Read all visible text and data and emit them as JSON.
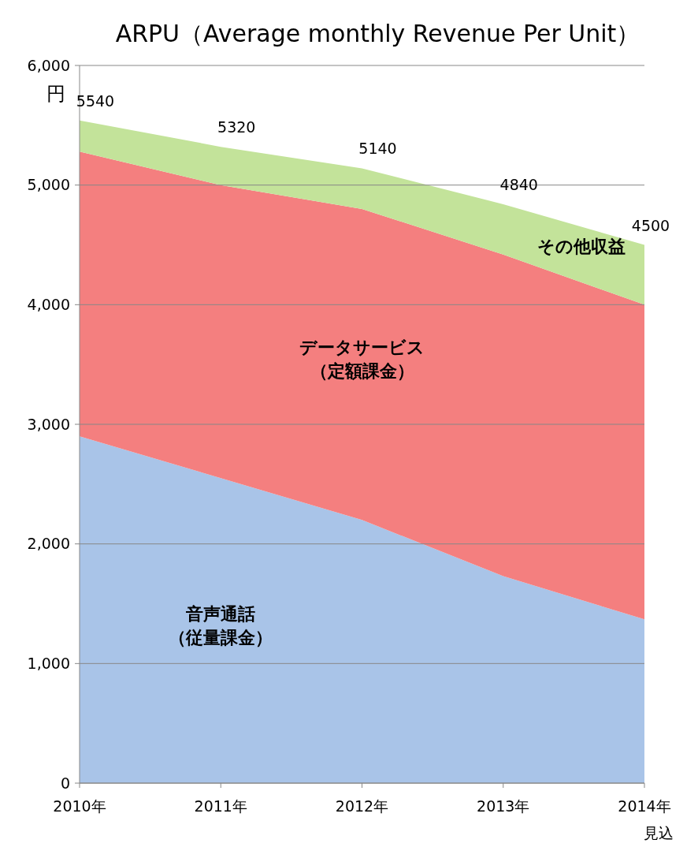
{
  "chart_data": {
    "type": "area",
    "title": "ARPU（Average monthly Revenue Per Unit）",
    "ylabel": "円",
    "categories": [
      "2010年",
      "2011年",
      "2012年",
      "2013年",
      "2014年見込"
    ],
    "stacked": true,
    "ylim": [
      0,
      6000
    ],
    "yticks": [
      {
        "value": 0,
        "label": "0"
      },
      {
        "value": 1000,
        "label": "1,000"
      },
      {
        "value": 2000,
        "label": "2,000"
      },
      {
        "value": 3000,
        "label": "3,000"
      },
      {
        "value": 4000,
        "label": "4,000"
      },
      {
        "value": 5000,
        "label": "5,000"
      },
      {
        "value": 6000,
        "label": "6,000"
      }
    ],
    "grid": "y",
    "series": [
      {
        "name": "音声通話（従量課金）",
        "color": "#a9c4e8",
        "values": [
          2900,
          2550,
          2200,
          1730,
          1370
        ]
      },
      {
        "name": "データサービス（定額課金）",
        "color": "#f47f7f",
        "values": [
          2380,
          2450,
          2600,
          2690,
          2630
        ]
      },
      {
        "name": "その他収益",
        "color": "#c3e39a",
        "values": [
          260,
          320,
          340,
          420,
          500
        ]
      }
    ],
    "totals": [
      "5540",
      "5320",
      "5140",
      "4840",
      "4500"
    ]
  }
}
